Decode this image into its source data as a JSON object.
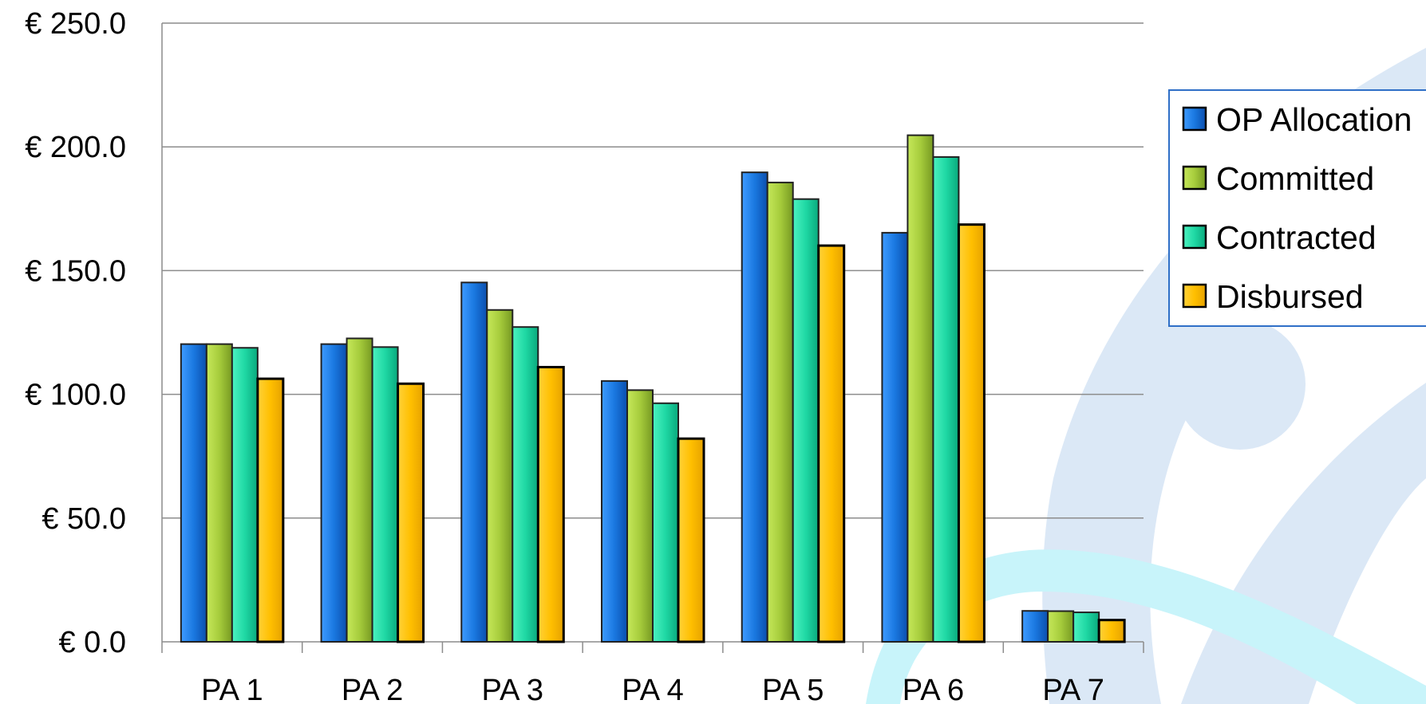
{
  "chart_data": {
    "type": "bar",
    "categories": [
      "PA 1",
      "PA 2",
      "PA 3",
      "PA 4",
      "PA 5",
      "PA 6",
      "PA 7"
    ],
    "series": [
      {
        "name": "OP Allocation",
        "color": "#1a78e0",
        "values": [
          120.3,
          120.3,
          145.2,
          105.4,
          189.7,
          165.3,
          12.5
        ]
      },
      {
        "name": "Committed",
        "color": "#a6cc3c",
        "values": [
          120.3,
          122.6,
          134.1,
          101.7,
          185.6,
          204.7,
          12.4
        ]
      },
      {
        "name": "Contracted",
        "color": "#1fd8a4",
        "values": [
          118.8,
          119.1,
          127.2,
          96.4,
          178.9,
          195.9,
          11.9
        ]
      },
      {
        "name": "Disbursed",
        "color": "#ffbf00",
        "values": [
          106.3,
          104.3,
          111.0,
          82.1,
          160.1,
          168.6,
          8.8
        ]
      }
    ],
    "y_ticks": [
      "€ 0.0",
      "€ 50.0",
      "€ 100.0",
      "€ 150.0",
      "€ 200.0",
      "€ 250.0"
    ],
    "ylim": [
      0,
      250
    ],
    "grid": true,
    "legend_position": "right",
    "title": "",
    "xlabel": "",
    "ylabel": ""
  }
}
